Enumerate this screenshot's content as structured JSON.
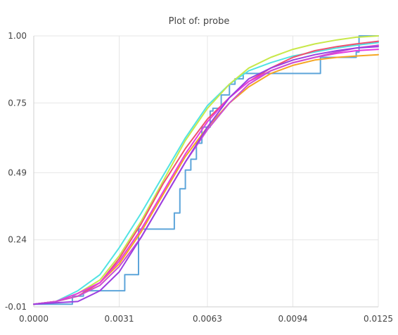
{
  "chart_data": {
    "type": "line",
    "title": "Plot of: probe",
    "xlabel": "",
    "ylabel": "",
    "xlim": [
      0,
      0.0125
    ],
    "ylim": [
      -0.01,
      1.0
    ],
    "x_ticks": [
      {
        "value": 0,
        "label": "0.0000"
      },
      {
        "value": 0.0031,
        "label": "0.0031"
      },
      {
        "value": 0.0063,
        "label": "0.0063"
      },
      {
        "value": 0.0094,
        "label": "0.0094"
      },
      {
        "value": 0.0125,
        "label": "0.0125"
      }
    ],
    "y_ticks": [
      {
        "value": -0.01,
        "label": "-0.01"
      },
      {
        "value": 0.24,
        "label": "0.24"
      },
      {
        "value": 0.49,
        "label": "0.49"
      },
      {
        "value": 0.75,
        "label": "0.75"
      },
      {
        "value": 1.0,
        "label": "1.00"
      }
    ],
    "grid": true,
    "legend": "none",
    "series": [
      {
        "color": "#5da5da",
        "step": true,
        "x": [
          0,
          0.0014,
          0.0018,
          0.0033,
          0.0038,
          0.0051,
          0.0053,
          0.0055,
          0.0057,
          0.0059,
          0.0061,
          0.0064,
          0.0065,
          0.0068,
          0.0071,
          0.0073,
          0.0076,
          0.0081,
          0.0091,
          0.0094,
          0.0104,
          0.0107,
          0.0117,
          0.0118,
          0.0125
        ],
        "y": [
          0.0,
          0.03,
          0.05,
          0.11,
          0.28,
          0.34,
          0.43,
          0.5,
          0.54,
          0.6,
          0.66,
          0.72,
          0.73,
          0.78,
          0.82,
          0.84,
          0.86,
          0.86,
          0.86,
          0.86,
          0.92,
          0.92,
          0.94,
          1.0,
          1.0
        ]
      },
      {
        "color": "#50e3e3",
        "step": false,
        "x": [
          0,
          0.0008,
          0.0016,
          0.0024,
          0.0031,
          0.0039,
          0.0047,
          0.0055,
          0.0063,
          0.0071,
          0.0078,
          0.0086,
          0.0094,
          0.0102,
          0.011,
          0.0117,
          0.0125
        ],
        "y": [
          0.0,
          0.01,
          0.05,
          0.11,
          0.21,
          0.34,
          0.48,
          0.62,
          0.74,
          0.82,
          0.87,
          0.9,
          0.925,
          0.94,
          0.955,
          0.965,
          0.975
        ]
      },
      {
        "color": "#c8e84a",
        "step": false,
        "x": [
          0,
          0.0008,
          0.0016,
          0.0024,
          0.0031,
          0.0039,
          0.0047,
          0.0055,
          0.0063,
          0.0071,
          0.0078,
          0.0086,
          0.0094,
          0.0102,
          0.011,
          0.0117,
          0.0125
        ],
        "y": [
          0.0,
          0.01,
          0.04,
          0.09,
          0.18,
          0.31,
          0.46,
          0.61,
          0.73,
          0.82,
          0.88,
          0.92,
          0.95,
          0.97,
          0.985,
          0.995,
          1.0
        ]
      },
      {
        "color": "#f5a623",
        "step": false,
        "x": [
          0,
          0.0008,
          0.0016,
          0.0024,
          0.0031,
          0.0039,
          0.0047,
          0.0055,
          0.0063,
          0.0071,
          0.0078,
          0.0086,
          0.0094,
          0.0102,
          0.011,
          0.0117,
          0.0125
        ],
        "y": [
          0.0,
          0.01,
          0.03,
          0.08,
          0.15,
          0.27,
          0.41,
          0.55,
          0.66,
          0.75,
          0.81,
          0.86,
          0.89,
          0.91,
          0.92,
          0.925,
          0.93
        ]
      },
      {
        "color": "#f0506e",
        "step": false,
        "x": [
          0,
          0.0008,
          0.0016,
          0.0024,
          0.0031,
          0.0039,
          0.0047,
          0.0055,
          0.0063,
          0.0071,
          0.0078,
          0.0086,
          0.0094,
          0.0102,
          0.011,
          0.0117,
          0.0125
        ],
        "y": [
          0.0,
          0.01,
          0.03,
          0.08,
          0.17,
          0.3,
          0.45,
          0.58,
          0.69,
          0.77,
          0.83,
          0.88,
          0.92,
          0.945,
          0.96,
          0.97,
          0.98
        ]
      },
      {
        "color": "#e53ce0",
        "step": false,
        "x": [
          0,
          0.0008,
          0.0016,
          0.0024,
          0.0031,
          0.0039,
          0.0047,
          0.0055,
          0.0063,
          0.0071,
          0.0078,
          0.0086,
          0.0094,
          0.0102,
          0.011,
          0.0117,
          0.0125
        ],
        "y": [
          0.0,
          0.01,
          0.04,
          0.08,
          0.16,
          0.28,
          0.42,
          0.56,
          0.68,
          0.77,
          0.83,
          0.87,
          0.9,
          0.92,
          0.935,
          0.945,
          0.95
        ]
      },
      {
        "color": "#cc4fd1",
        "step": false,
        "x": [
          0,
          0.0008,
          0.0016,
          0.0024,
          0.0031,
          0.0039,
          0.0047,
          0.0055,
          0.0063,
          0.0071,
          0.0078,
          0.0086,
          0.0094,
          0.0102,
          0.011,
          0.0117,
          0.0125
        ],
        "y": [
          0.0,
          0.01,
          0.03,
          0.07,
          0.14,
          0.25,
          0.39,
          0.53,
          0.65,
          0.75,
          0.82,
          0.87,
          0.9,
          0.92,
          0.94,
          0.955,
          0.965
        ]
      },
      {
        "color": "#9b3fe0",
        "step": false,
        "x": [
          0,
          0.0008,
          0.0016,
          0.0024,
          0.0031,
          0.0039,
          0.0047,
          0.0055,
          0.0063,
          0.0071,
          0.0078,
          0.0086,
          0.0094,
          0.0102,
          0.011,
          0.0117,
          0.0125
        ],
        "y": [
          0.0,
          0.005,
          0.01,
          0.05,
          0.12,
          0.25,
          0.39,
          0.53,
          0.66,
          0.77,
          0.84,
          0.88,
          0.91,
          0.93,
          0.945,
          0.955,
          0.96
        ]
      }
    ]
  }
}
